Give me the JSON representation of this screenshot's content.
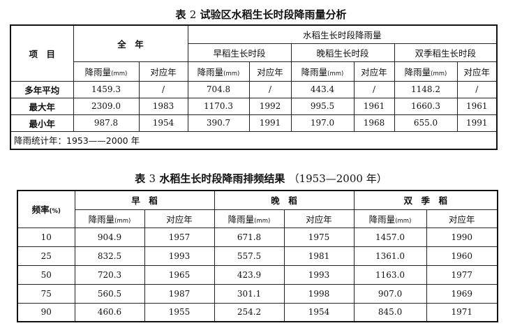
{
  "table2": {
    "caption_prefix": "表",
    "caption_num": "2",
    "caption_text": "试验区水稻生长时段降雨量分析",
    "hdr_item": "项　目",
    "hdr_full_year": "全　年",
    "hdr_growth_rain": "水稻生长时段降雨量",
    "hdr_early": "早稻生长时段",
    "hdr_late": "晚稻生长时段",
    "hdr_double": "双季稻生长时段",
    "col_rain": "降雨量",
    "col_unit": "(mm)",
    "col_year": "对应年",
    "rows": [
      {
        "label": "多年平均",
        "values": [
          "1459.3",
          "/",
          "704.8",
          "/",
          "443.4",
          "/",
          "1148.2",
          "/"
        ]
      },
      {
        "label": "最大年",
        "values": [
          "2309.0",
          "1983",
          "1170.3",
          "1992",
          "995.5",
          "1961",
          "1660.3",
          "1961"
        ]
      },
      {
        "label": "最小年",
        "values": [
          "987.8",
          "1954",
          "390.7",
          "1991",
          "197.0",
          "1968",
          "655.0",
          "1991"
        ]
      }
    ],
    "footnote": "降雨统计年：1953——2000 年"
  },
  "table3": {
    "caption_prefix": "表",
    "caption_num": "3",
    "caption_text": "水稻生长时段降雨排频结果",
    "caption_range": "（1953—2000 年）",
    "hdr_freq": "频率",
    "hdr_freq_unit": "(%)",
    "hdr_early": "早　稻",
    "hdr_late": "晚　稻",
    "hdr_double": "双　季　稻",
    "col_rain": "降雨量",
    "col_unit": "(mm)",
    "col_year": "对应年",
    "rows": [
      {
        "freq": "10",
        "values": [
          "904.9",
          "1957",
          "671.8",
          "1975",
          "1457.0",
          "1990"
        ]
      },
      {
        "freq": "25",
        "values": [
          "832.5",
          "1993",
          "557.5",
          "1981",
          "1361.0",
          "1960"
        ]
      },
      {
        "freq": "50",
        "values": [
          "720.3",
          "1965",
          "423.9",
          "1993",
          "1163.0",
          "1977"
        ]
      },
      {
        "freq": "75",
        "values": [
          "560.5",
          "1987",
          "301.1",
          "1998",
          "907.0",
          "1969"
        ]
      },
      {
        "freq": "90",
        "values": [
          "460.6",
          "1955",
          "254.2",
          "1954",
          "845.0",
          "1971"
        ]
      }
    ]
  }
}
